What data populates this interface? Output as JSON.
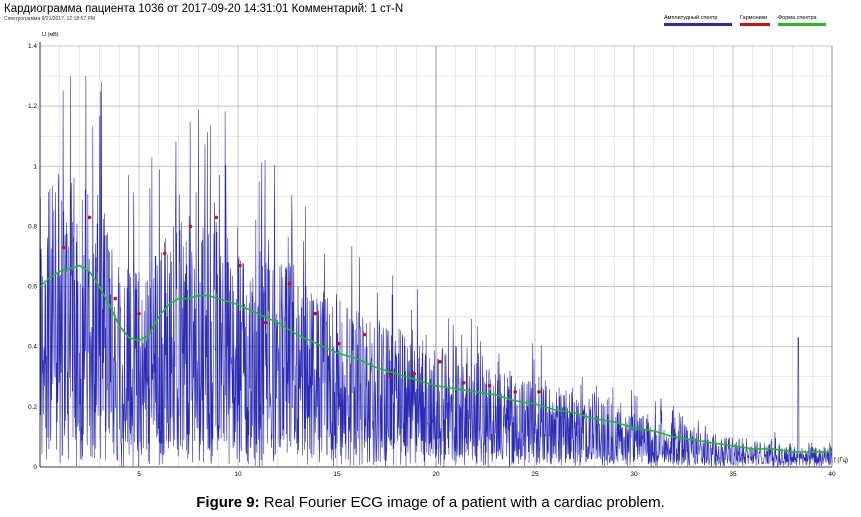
{
  "title": "Кардиограмма пациента 1036 от 2017-09-20 14:31:01   Комментарий: 1 ст-N",
  "subtitle": "Спектрограмма 9/21/2017, 12:18:57 PM",
  "caption": {
    "bold": "Figure 9:",
    "text": " Real Fourier ECG image of a patient with a cardiac problem."
  },
  "colors": {
    "amplitude": "#2b2bb5",
    "harmonics": "#cc1111",
    "shape": "#22bb22",
    "grid": "#d0d0d0",
    "grid_major": "#8a8a8a",
    "axis": "#000000"
  },
  "chart_data": {
    "type": "line",
    "title": "Кардиограмма пациента 1036 от 2017-09-20 14:31:01   Комментарий: 1 ст-N",
    "xlabel": "f (Гц)",
    "ylabel": "U (мВ)",
    "xlim": [
      0,
      40
    ],
    "ylim": [
      0,
      1.4
    ],
    "x_ticks": [
      5,
      10,
      15,
      20,
      25,
      30,
      35,
      40
    ],
    "y_ticks": [
      0,
      0.2,
      0.4,
      0.6,
      0.8,
      1,
      1.2,
      1.4
    ],
    "grid": true,
    "legend_position": "top-right",
    "series": [
      {
        "name": "Амплитудный спектр",
        "kind": "noisy-spectrum",
        "description_envelope_x": [
          0,
          1,
          2,
          3,
          4,
          5,
          6,
          7,
          8,
          9,
          10,
          12,
          14,
          16,
          18,
          20,
          22,
          24,
          26,
          28,
          30,
          32,
          34,
          36,
          38,
          40
        ],
        "description_envelope_y": [
          0.6,
          0.64,
          0.66,
          0.6,
          0.5,
          0.44,
          0.5,
          0.56,
          0.57,
          0.56,
          0.53,
          0.46,
          0.4,
          0.35,
          0.31,
          0.27,
          0.24,
          0.21,
          0.18,
          0.15,
          0.12,
          0.1,
          0.08,
          0.06,
          0.05,
          0.04
        ],
        "spike": {
          "x": 38.3,
          "y": 0.43
        }
      },
      {
        "name": "Гармоники",
        "kind": "points",
        "x": [
          1.2,
          2.5,
          3.8,
          5.0,
          6.3,
          7.6,
          8.9,
          10.1,
          11.4,
          12.6,
          13.9,
          15.1,
          16.4,
          17.7,
          18.9,
          20.2,
          21.4,
          22.7,
          24.0,
          25.2
        ],
        "y": [
          0.73,
          0.83,
          0.56,
          0.51,
          0.71,
          0.8,
          0.83,
          0.67,
          0.48,
          0.61,
          0.51,
          0.41,
          0.44,
          0.3,
          0.31,
          0.35,
          0.28,
          0.27,
          0.25,
          0.25
        ]
      },
      {
        "name": "Форма спектра",
        "kind": "smooth-line",
        "x": [
          0,
          0.5,
          1,
          1.5,
          2,
          2.5,
          3,
          3.5,
          4,
          4.5,
          5,
          5.5,
          6,
          6.5,
          7,
          7.5,
          8,
          8.5,
          9,
          9.5,
          10,
          11,
          12,
          13,
          14,
          15,
          16,
          17,
          18,
          19,
          20,
          21,
          22,
          23,
          24,
          25,
          26,
          27,
          28,
          29,
          30,
          31,
          32,
          33,
          34,
          35,
          36,
          37,
          38,
          39,
          40
        ],
        "y": [
          0.6,
          0.63,
          0.65,
          0.66,
          0.67,
          0.65,
          0.6,
          0.54,
          0.47,
          0.43,
          0.42,
          0.44,
          0.5,
          0.54,
          0.56,
          0.56,
          0.57,
          0.57,
          0.56,
          0.55,
          0.54,
          0.51,
          0.48,
          0.44,
          0.41,
          0.38,
          0.36,
          0.33,
          0.31,
          0.29,
          0.27,
          0.26,
          0.25,
          0.24,
          0.22,
          0.21,
          0.19,
          0.18,
          0.16,
          0.15,
          0.13,
          0.12,
          0.1,
          0.09,
          0.08,
          0.07,
          0.06,
          0.06,
          0.05,
          0.05,
          0.05
        ]
      }
    ]
  }
}
